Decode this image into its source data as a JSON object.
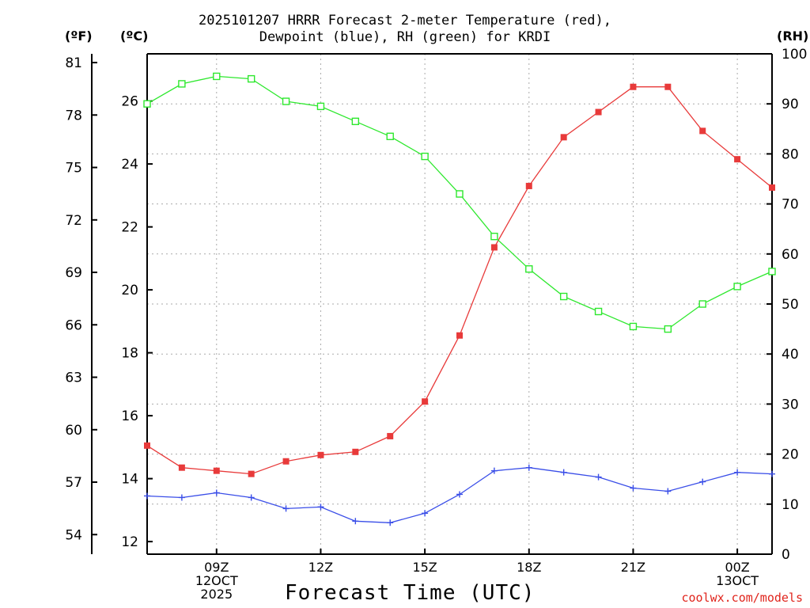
{
  "chart_data": {
    "type": "line",
    "title_line1": "2025101207 HRRR Forecast 2-meter Temperature (red),",
    "title_line2": "Dewpoint (blue), RH (green) for KRDI",
    "unit_f": "(ºF)",
    "unit_c": "(ºC)",
    "unit_rh": "(RH)",
    "xlabel": "Forecast Time (UTC)",
    "credit": "coolwx.com/models",
    "x_hours": [
      7,
      8,
      9,
      10,
      11,
      12,
      13,
      14,
      15,
      16,
      17,
      18,
      19,
      20,
      21,
      22,
      23,
      24,
      25
    ],
    "xlim": [
      7,
      25
    ],
    "x_ticks": [
      {
        "hour": 9,
        "lines": [
          "09Z",
          "12OCT",
          "2025"
        ]
      },
      {
        "hour": 12,
        "lines": [
          "12Z"
        ]
      },
      {
        "hour": 15,
        "lines": [
          "15Z"
        ]
      },
      {
        "hour": 18,
        "lines": [
          "18Z"
        ]
      },
      {
        "hour": 21,
        "lines": [
          "21Z"
        ]
      },
      {
        "hour": 24,
        "lines": [
          "00Z",
          "13OCT"
        ]
      }
    ],
    "ylim_c": [
      11.6,
      27.5
    ],
    "yticks_c": [
      "12",
      "14",
      "16",
      "18",
      "20",
      "22",
      "24",
      "26"
    ],
    "yticks_f": [
      "54",
      "57",
      "60",
      "63",
      "66",
      "69",
      "72",
      "75",
      "78",
      "81"
    ],
    "ylim_rh": [
      0,
      100
    ],
    "yticks_rh": [
      "0",
      "10",
      "20",
      "30",
      "40",
      "50",
      "60",
      "70",
      "80",
      "90",
      "100"
    ],
    "series": [
      {
        "name": "2-meter Temperature",
        "color": "#e83a3a",
        "marker": "filled-square",
        "axis": "c",
        "values": [
          15.05,
          14.35,
          14.25,
          14.15,
          14.55,
          14.75,
          14.85,
          15.35,
          16.45,
          18.55,
          21.35,
          23.3,
          24.85,
          25.65,
          26.45,
          26.45,
          25.05,
          24.15,
          23.25
        ]
      },
      {
        "name": "Dewpoint",
        "color": "#3a4ee8",
        "marker": "plus",
        "axis": "c",
        "values": [
          13.45,
          13.4,
          13.55,
          13.4,
          13.05,
          13.1,
          12.65,
          12.6,
          12.9,
          13.5,
          14.25,
          14.35,
          14.2,
          14.05,
          13.7,
          13.6,
          13.9,
          14.2,
          14.15
        ]
      },
      {
        "name": "RH",
        "color": "#2ee82e",
        "marker": "open-square",
        "axis": "rh",
        "values": [
          90,
          94,
          95.5,
          95,
          90.5,
          89.5,
          86.5,
          83.5,
          79.5,
          72,
          63.5,
          57,
          51.5,
          48.5,
          45.5,
          45,
          50,
          53.5,
          56.5
        ]
      }
    ]
  }
}
